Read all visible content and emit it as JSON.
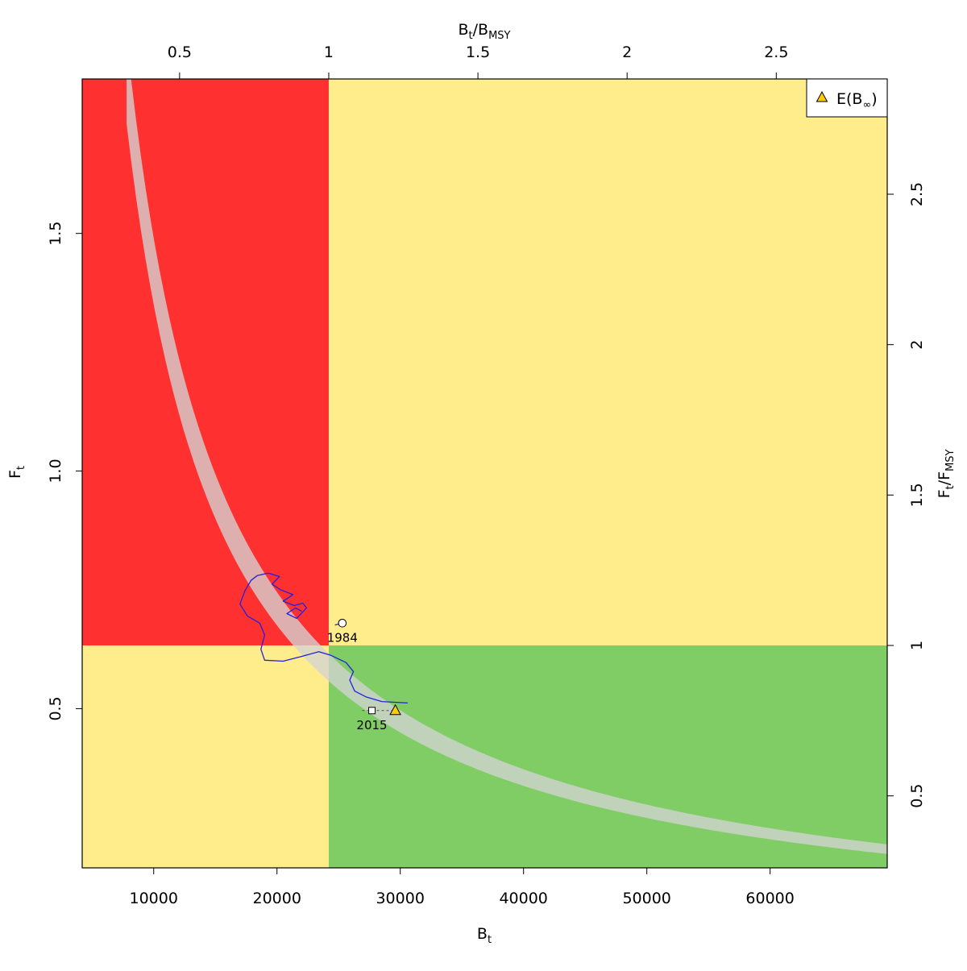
{
  "chart_data": {
    "type": "scatter",
    "title": "",
    "xlabel": {
      "base": "B",
      "sub": "t"
    },
    "ylabel": {
      "base": "F",
      "sub": "t"
    },
    "x2label": {
      "num_base": "B",
      "num_sub": "t",
      "den_base": "B",
      "den_sub": "MSY"
    },
    "y2label": {
      "num_base": "F",
      "num_sub": "t",
      "den_base": "F",
      "den_sub": "MSY"
    },
    "xlim": [
      4200,
      69500
    ],
    "ylim": [
      0.165,
      1.825
    ],
    "xticks": [
      10000,
      20000,
      30000,
      40000,
      50000,
      60000
    ],
    "xtick_labels": [
      "10000",
      "20000",
      "30000",
      "40000",
      "50000",
      "60000"
    ],
    "yticks": [
      0.5,
      1.0,
      1.5
    ],
    "ytick_labels": [
      "0.5",
      "1.0",
      "1.5"
    ],
    "x2ticks": [
      0.5,
      1,
      1.5,
      2,
      2.5
    ],
    "x2tick_labels": [
      "0.5",
      "1",
      "1.5",
      "2",
      "2.5"
    ],
    "y2ticks": [
      0.5,
      1,
      1.5,
      2,
      2.5
    ],
    "y2tick_labels": [
      "0.5",
      "1",
      "1.5",
      "2",
      "2.5"
    ],
    "bmsy": 24200,
    "fmsy": 0.633,
    "zone_colors": {
      "red": "#ff3030",
      "yellow": "#ffec8b",
      "green": "#80cd66",
      "msy_band": "#d3d3d3",
      "trajectory": "#2020e0",
      "forecast_marker": "#ffcc00"
    },
    "msy_band": {
      "lower_product": 13500,
      "upper_product": 14900,
      "x_range": [
        7800,
        69500
      ]
    },
    "trajectory": [
      [
        22000,
        0.705
      ],
      [
        21500,
        0.712
      ],
      [
        20800,
        0.7
      ],
      [
        21600,
        0.69
      ],
      [
        22400,
        0.712
      ],
      [
        22100,
        0.722
      ],
      [
        21400,
        0.717
      ],
      [
        20500,
        0.726
      ],
      [
        21300,
        0.74
      ],
      [
        20300,
        0.75
      ],
      [
        19600,
        0.762
      ],
      [
        20200,
        0.778
      ],
      [
        19300,
        0.785
      ],
      [
        18400,
        0.78
      ],
      [
        17900,
        0.77
      ],
      [
        17400,
        0.748
      ],
      [
        17000,
        0.72
      ],
      [
        17600,
        0.695
      ],
      [
        18600,
        0.68
      ],
      [
        19000,
        0.655
      ],
      [
        18700,
        0.625
      ],
      [
        19000,
        0.602
      ],
      [
        20500,
        0.6
      ],
      [
        22000,
        0.61
      ],
      [
        23400,
        0.62
      ],
      [
        24400,
        0.612
      ],
      [
        25600,
        0.597
      ],
      [
        26200,
        0.578
      ],
      [
        25900,
        0.56
      ],
      [
        26300,
        0.537
      ],
      [
        27200,
        0.525
      ],
      [
        28500,
        0.515
      ],
      [
        30600,
        0.512
      ]
    ],
    "start_point": {
      "year": "1984",
      "x": 25300,
      "y": 0.68
    },
    "end_point": {
      "year": "2015",
      "x": 27700,
      "y": 0.496
    },
    "forecast": {
      "x": 29600,
      "y": 0.496
    },
    "legend": {
      "position": "top-right",
      "entries": [
        {
          "marker": "triangle",
          "label": "E(B",
          "label_sub": "∞",
          "label_end": ")"
        }
      ]
    }
  }
}
